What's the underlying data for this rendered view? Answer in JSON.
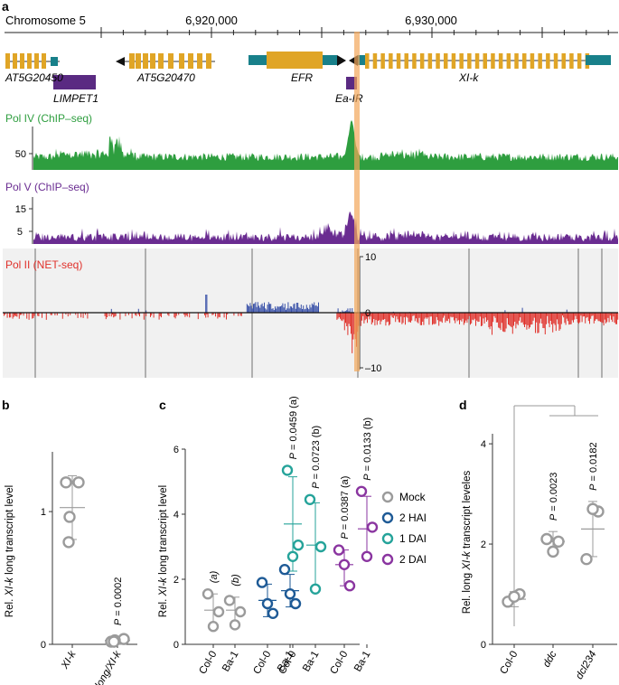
{
  "colors": {
    "pol_iv": "#2e9e3f",
    "pol_v": "#6a2c91",
    "pol_ii_pos": "#3850a8",
    "pol_ii_neg": "#e0312b",
    "gene": "#e0a526",
    "utr": "#18808a",
    "limpet": "#5a2a82",
    "highlight": "#f2a65a",
    "grey_pt": "#9b9b9b",
    "hai2": "#1e5a96",
    "dai1": "#25a39a",
    "dai2": "#8a35a0"
  },
  "panel_labels": {
    "a": "a",
    "b": "b",
    "c": "c",
    "d": "d"
  },
  "chart_data": [
    {
      "panel": "a",
      "type": "genome_browser",
      "chromosome_label": "Chromosome 5",
      "axis_ticks": [
        "6,920,000",
        "6,930,000"
      ],
      "genes": [
        "AT5G20450",
        "AT5G20470",
        "EFR",
        "XI-k"
      ],
      "elements": [
        "LIMPET1",
        "Ea-IR"
      ],
      "tracks": [
        {
          "name": "Pol IV (ChIP–seq)",
          "ticks": [
            "50"
          ]
        },
        {
          "name": "Pol V (ChIP–seq)",
          "ticks": [
            "15",
            "5"
          ]
        },
        {
          "name": "Pol II (NET-seq)",
          "ticks": [
            "10",
            "0",
            "–10"
          ],
          "ylim": [
            -10,
            10
          ]
        }
      ]
    },
    {
      "panel": "b",
      "type": "scatter",
      "ylabel_parts": [
        "Rel. ",
        "XI-k",
        " long transcript level"
      ],
      "yticks": [
        "0",
        "1"
      ],
      "ylim": [
        0,
        1.45
      ],
      "categories": [
        "XI-k",
        "XI-k long/XI-k"
      ],
      "points": [
        [
          1.22,
          1.22,
          0.96,
          0.77
        ],
        [
          0.02,
          0.04,
          0.03,
          0.02
        ]
      ],
      "mean": [
        1.03,
        0.03
      ],
      "sd": [
        [
          0.79,
          1.27
        ],
        [
          0.0,
          0.06
        ]
      ],
      "annotations": [
        {
          "group": 1,
          "text": "P = 0.0002"
        }
      ]
    },
    {
      "panel": "c",
      "type": "scatter",
      "ylabel_parts": [
        "Rel. ",
        "XI-k",
        " long transcript level"
      ],
      "yticks": [
        "0",
        "2",
        "4",
        "6"
      ],
      "ylim": [
        0,
        6
      ],
      "categories": [
        "Col-0",
        "Ba-1",
        "Col-0",
        "Ba-1",
        "Col-0",
        "Ba-1",
        "Col-0",
        "Ba-1"
      ],
      "series": [
        {
          "name": "Mock",
          "groups": [
            0,
            1
          ],
          "points": [
            [
              1.55,
              1.0,
              0.55
            ],
            [
              1.35,
              1.0,
              0.6
            ]
          ],
          "mean": [
            1.05,
            1.05
          ],
          "sd": [
            [
              0.55,
              1.55
            ],
            [
              0.6,
              1.45
            ]
          ]
        },
        {
          "name": "2 HAI",
          "groups": [
            2,
            3
          ],
          "points": [
            [
              1.9,
              0.95,
              1.25
            ],
            [
              2.3,
              1.25,
              1.55
            ]
          ],
          "mean": [
            1.35,
            1.65
          ],
          "sd": [
            [
              0.85,
              1.85
            ],
            [
              1.15,
              2.15
            ]
          ]
        },
        {
          "name": "1 DAI",
          "groups": [
            4,
            5
          ],
          "points": [
            [
              5.35,
              3.05,
              2.7
            ],
            [
              4.45,
              3.0,
              1.7
            ]
          ],
          "mean": [
            3.7,
            3.05
          ],
          "sd": [
            [
              2.25,
              5.15
            ],
            [
              1.75,
              4.35
            ]
          ]
        },
        {
          "name": "2 DAI",
          "groups": [
            6,
            7
          ],
          "points": [
            [
              2.9,
              1.8,
              2.45
            ],
            [
              4.7,
              3.6,
              2.7
            ]
          ],
          "mean": [
            2.45,
            3.55
          ],
          "sd": [
            [
              1.8,
              2.9
            ],
            [
              2.6,
              4.55
            ]
          ]
        }
      ],
      "annotations": [
        {
          "group": 0,
          "text": "(a)"
        },
        {
          "group": 1,
          "text": "(b)"
        },
        {
          "group": 4,
          "text": "P = 0.0459 (a)"
        },
        {
          "group": 5,
          "text": "P = 0.0723 (b)"
        },
        {
          "group": 6,
          "text": "P = 0.0387 (a)"
        },
        {
          "group": 7,
          "text": "P = 0.0133 (b)"
        }
      ]
    },
    {
      "panel": "d",
      "type": "scatter",
      "ylabel_parts": [
        "Rel. long ",
        "XI-k",
        " transcript leveles"
      ],
      "yticks": [
        "0",
        "2",
        "4"
      ],
      "ylim": [
        0,
        4.2
      ],
      "categories": [
        "Col-0",
        "ddc",
        "dcl234"
      ],
      "points": [
        [
          1.0,
          0.85,
          0.95
        ],
        [
          2.05,
          2.1,
          1.85
        ],
        [
          2.65,
          1.7,
          2.7
        ]
      ],
      "mean": [
        0.9,
        2.05,
        2.3
      ],
      "sd": [
        [
          0.75,
          1.05
        ],
        [
          1.85,
          2.25
        ],
        [
          1.75,
          2.85
        ]
      ],
      "annotations": [
        {
          "group": 1,
          "text": "P = 0.0023"
        },
        {
          "group": 2,
          "text": "P = 0.0182"
        }
      ]
    }
  ]
}
